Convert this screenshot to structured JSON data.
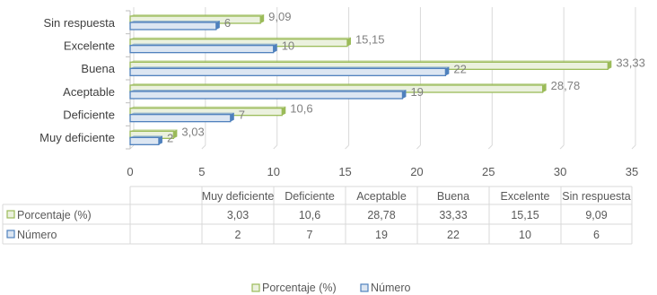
{
  "chart_data": {
    "type": "bar",
    "orientation": "horizontal",
    "categories": [
      "Muy deficiente",
      "Deficiente",
      "Aceptable",
      "Buena",
      "Excelente",
      "Sin respuesta"
    ],
    "series": [
      {
        "name": "Porcentaje (%)",
        "values": [
          3.03,
          10.6,
          28.78,
          33.33,
          15.15,
          9.09
        ],
        "labels": [
          "3,03",
          "10,6",
          "28,78",
          "33,33",
          "15,15",
          "9,09"
        ],
        "color": "#9bbb59",
        "fill": "#ebf1de"
      },
      {
        "name": "Número",
        "values": [
          2,
          7,
          19,
          22,
          10,
          6
        ],
        "labels": [
          "2",
          "7",
          "19",
          "22",
          "10",
          "6"
        ],
        "color": "#4f81bd",
        "fill": "#dce6f2"
      }
    ],
    "xlim": [
      0,
      35
    ],
    "x_ticks": [
      "0",
      "5",
      "10",
      "15",
      "20",
      "25",
      "30",
      "35"
    ],
    "grid": true,
    "data_table": true,
    "legend": "bottom"
  }
}
